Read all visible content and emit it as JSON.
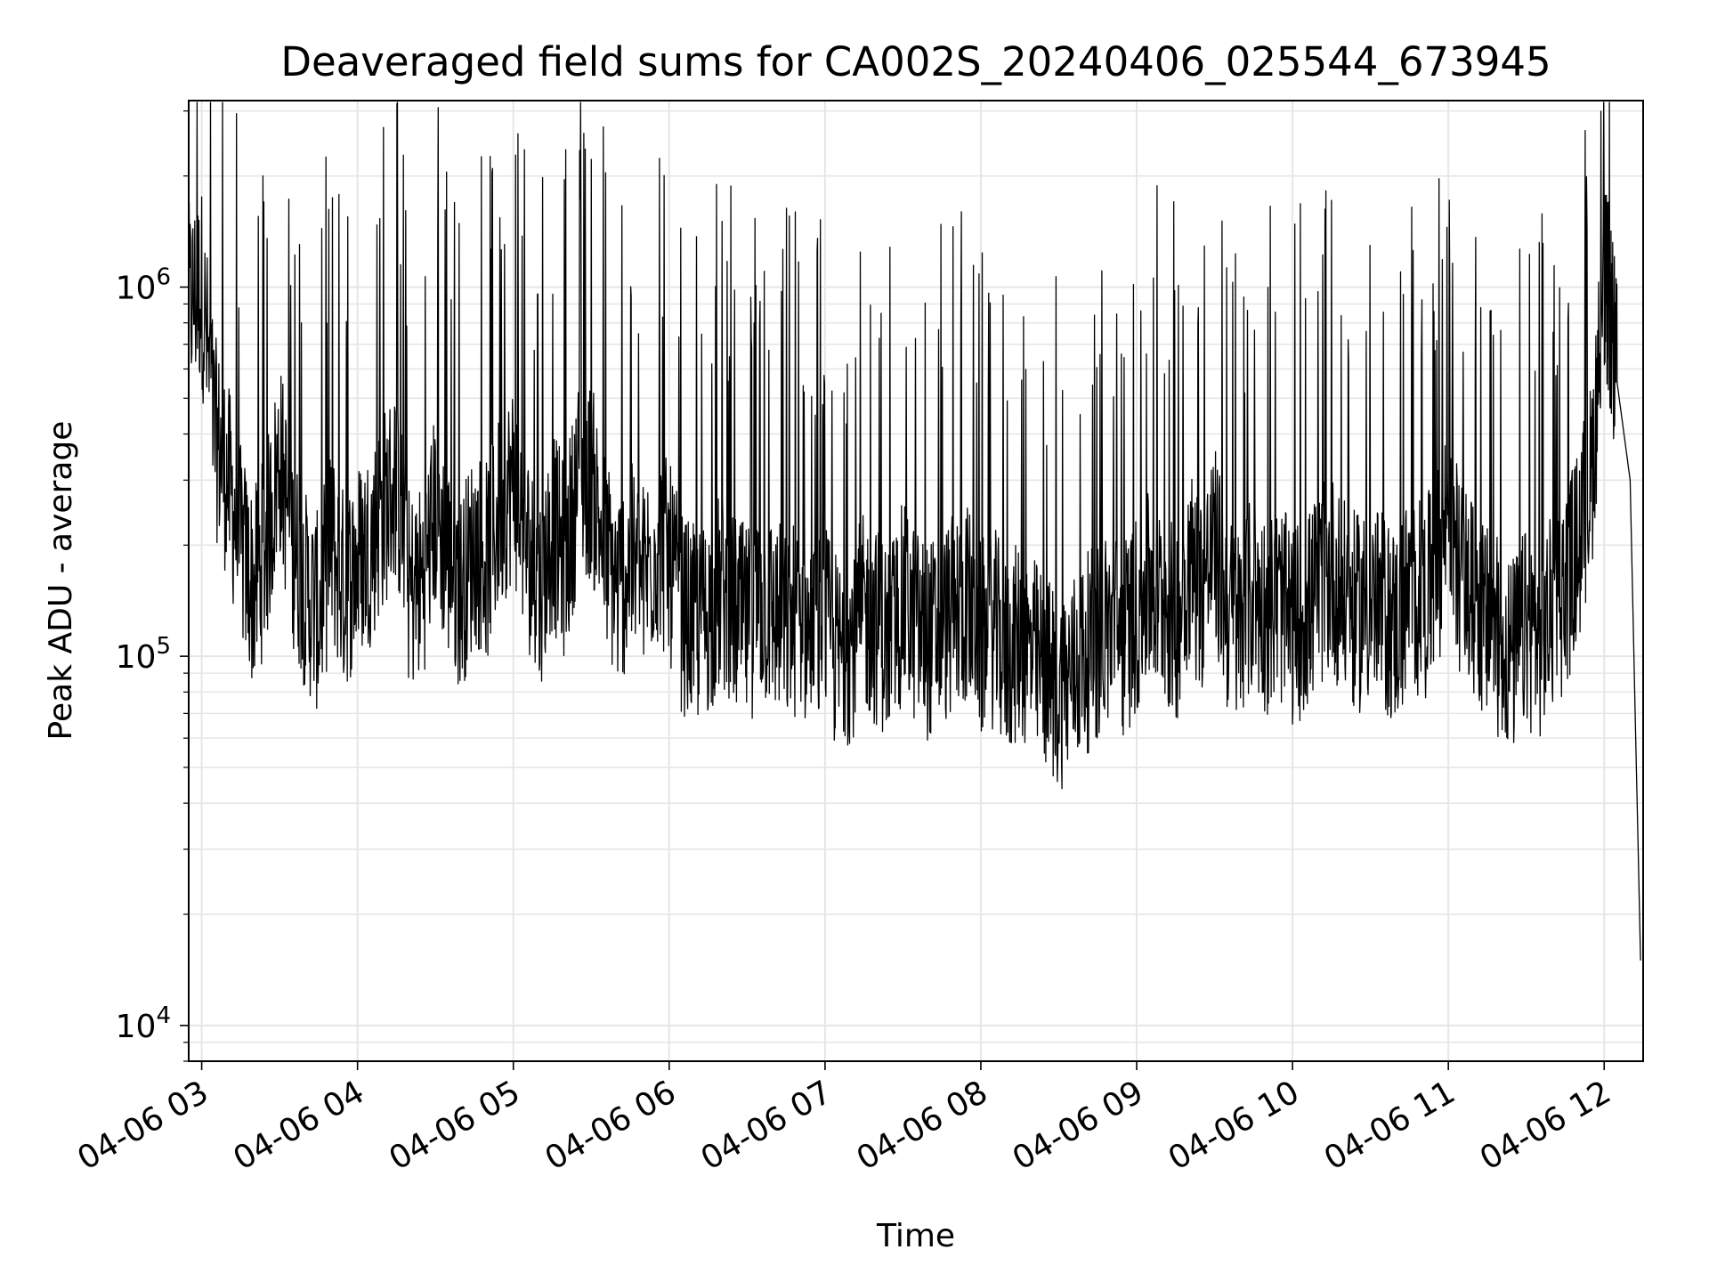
{
  "chart_data": {
    "type": "line",
    "title": "Deaveraged field sums for CA002S_20240406_025544_673945",
    "xlabel": "Time",
    "ylabel": "Peak ADU - average",
    "yscale": "log",
    "ylim": [
      8000,
      3200000
    ],
    "xlim": [
      "2024-04-06 02:55",
      "2024-04-06 12:15"
    ],
    "grid": true,
    "colors": {
      "line": "#000000",
      "grid": "#e6e6e6",
      "axes": "#000000"
    },
    "y_ticks": [
      {
        "value": 10000,
        "base": "10",
        "exp": "4"
      },
      {
        "value": 100000,
        "base": "10",
        "exp": "5"
      },
      {
        "value": 1000000,
        "base": "10",
        "exp": "6"
      }
    ],
    "x_ticks": [
      {
        "value": "2024-04-06 03:00",
        "label": "04-06 03"
      },
      {
        "value": "2024-04-06 04:00",
        "label": "04-06 04"
      },
      {
        "value": "2024-04-06 05:00",
        "label": "04-06 05"
      },
      {
        "value": "2024-04-06 06:00",
        "label": "04-06 06"
      },
      {
        "value": "2024-04-06 07:00",
        "label": "04-06 07"
      },
      {
        "value": "2024-04-06 08:00",
        "label": "04-06 08"
      },
      {
        "value": "2024-04-06 09:00",
        "label": "04-06 09"
      },
      {
        "value": "2024-04-06 10:00",
        "label": "04-06 10"
      },
      {
        "value": "2024-04-06 11:00",
        "label": "04-06 11"
      },
      {
        "value": "2024-04-06 12:00",
        "label": "04-06 12"
      }
    ],
    "series": [
      {
        "x": [
          "2024-04-06 02:55",
          "2024-04-06 03:00",
          "2024-04-06 03:05",
          "2024-04-06 03:10",
          "2024-04-06 03:15",
          "2024-04-06 03:20",
          "2024-04-06 03:25",
          "2024-04-06 03:30",
          "2024-04-06 03:35",
          "2024-04-06 03:40",
          "2024-04-06 03:45",
          "2024-04-06 03:50",
          "2024-04-06 03:55",
          "2024-04-06 04:00",
          "2024-04-06 04:05",
          "2024-04-06 04:10",
          "2024-04-06 04:15",
          "2024-04-06 04:20",
          "2024-04-06 04:25",
          "2024-04-06 04:30",
          "2024-04-06 04:35",
          "2024-04-06 04:40",
          "2024-04-06 04:45",
          "2024-04-06 04:50",
          "2024-04-06 04:55",
          "2024-04-06 05:00",
          "2024-04-06 05:05",
          "2024-04-06 05:10",
          "2024-04-06 05:15",
          "2024-04-06 05:20",
          "2024-04-06 05:25",
          "2024-04-06 05:30",
          "2024-04-06 05:35",
          "2024-04-06 05:40",
          "2024-04-06 05:45",
          "2024-04-06 05:50",
          "2024-04-06 05:55",
          "2024-04-06 06:00",
          "2024-04-06 06:05",
          "2024-04-06 06:10",
          "2024-04-06 06:15",
          "2024-04-06 06:20",
          "2024-04-06 06:25",
          "2024-04-06 06:30",
          "2024-04-06 06:35",
          "2024-04-06 06:40",
          "2024-04-06 06:45",
          "2024-04-06 06:50",
          "2024-04-06 06:55",
          "2024-04-06 07:00",
          "2024-04-06 07:05",
          "2024-04-06 07:10",
          "2024-04-06 07:15",
          "2024-04-06 07:20",
          "2024-04-06 07:25",
          "2024-04-06 07:30",
          "2024-04-06 07:35",
          "2024-04-06 07:40",
          "2024-04-06 07:45",
          "2024-04-06 07:50",
          "2024-04-06 07:55",
          "2024-04-06 08:00",
          "2024-04-06 08:05",
          "2024-04-06 08:10",
          "2024-04-06 08:15",
          "2024-04-06 08:20",
          "2024-04-06 08:25",
          "2024-04-06 08:30",
          "2024-04-06 08:35",
          "2024-04-06 08:40",
          "2024-04-06 08:45",
          "2024-04-06 08:50",
          "2024-04-06 08:55",
          "2024-04-06 09:00",
          "2024-04-06 09:05",
          "2024-04-06 09:10",
          "2024-04-06 09:15",
          "2024-04-06 09:20",
          "2024-04-06 09:25",
          "2024-04-06 09:30",
          "2024-04-06 09:35",
          "2024-04-06 09:40",
          "2024-04-06 09:45",
          "2024-04-06 09:50",
          "2024-04-06 09:55",
          "2024-04-06 10:00",
          "2024-04-06 10:05",
          "2024-04-06 10:10",
          "2024-04-06 10:15",
          "2024-04-06 10:20",
          "2024-04-06 10:25",
          "2024-04-06 10:30",
          "2024-04-06 10:35",
          "2024-04-06 10:40",
          "2024-04-06 10:45",
          "2024-04-06 10:50",
          "2024-04-06 10:55",
          "2024-04-06 11:00",
          "2024-04-06 11:05",
          "2024-04-06 11:10",
          "2024-04-06 11:15",
          "2024-04-06 11:20",
          "2024-04-06 11:25",
          "2024-04-06 11:30",
          "2024-04-06 11:35",
          "2024-04-06 11:40",
          "2024-04-06 11:45",
          "2024-04-06 11:50",
          "2024-04-06 11:55",
          "2024-04-06 12:00",
          "2024-04-06 12:02",
          "2024-04-06 12:05",
          "2024-04-06 12:10",
          "2024-04-06 12:14"
        ],
        "y": [
          900000,
          1000000,
          400000,
          300000,
          200000,
          150000,
          200000,
          350000,
          200000,
          150000,
          130000,
          200000,
          150000,
          180000,
          200000,
          250000,
          300000,
          150000,
          160000,
          250000,
          180000,
          150000,
          200000,
          180000,
          250000,
          300000,
          200000,
          150000,
          220000,
          180000,
          300000,
          300000,
          200000,
          150000,
          180000,
          160000,
          200000,
          180000,
          130000,
          120000,
          130000,
          150000,
          130000,
          120000,
          140000,
          130000,
          120000,
          130000,
          110000,
          120000,
          100000,
          110000,
          130000,
          120000,
          110000,
          140000,
          120000,
          110000,
          120000,
          130000,
          140000,
          110000,
          120000,
          100000,
          110000,
          100000,
          90000,
          80000,
          90000,
          100000,
          110000,
          120000,
          110000,
          130000,
          150000,
          140000,
          120000,
          180000,
          150000,
          200000,
          130000,
          120000,
          150000,
          130000,
          140000,
          120000,
          130000,
          150000,
          170000,
          140000,
          130000,
          140000,
          130000,
          120000,
          150000,
          140000,
          160000,
          250000,
          160000,
          140000,
          120000,
          110000,
          100000,
          120000,
          110000,
          130000,
          150000,
          200000,
          300000,
          1000000,
          900000,
          550000,
          300000,
          15000
        ]
      }
    ]
  }
}
